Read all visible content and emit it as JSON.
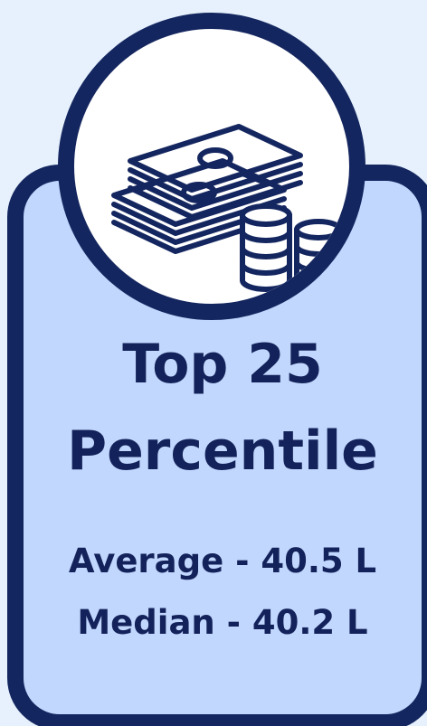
{
  "card": {
    "icon": "money-stack-coins-icon",
    "title_line1": "Top 25",
    "title_line2": "Percentile",
    "average": "Average - 40.5 L",
    "median": "Median - 40.2 L"
  },
  "colors": {
    "background": "#e6f1fd",
    "card_fill": "#c1d7fd",
    "border": "#14265f",
    "text": "#13225a",
    "icon_bg": "#ffffff"
  }
}
